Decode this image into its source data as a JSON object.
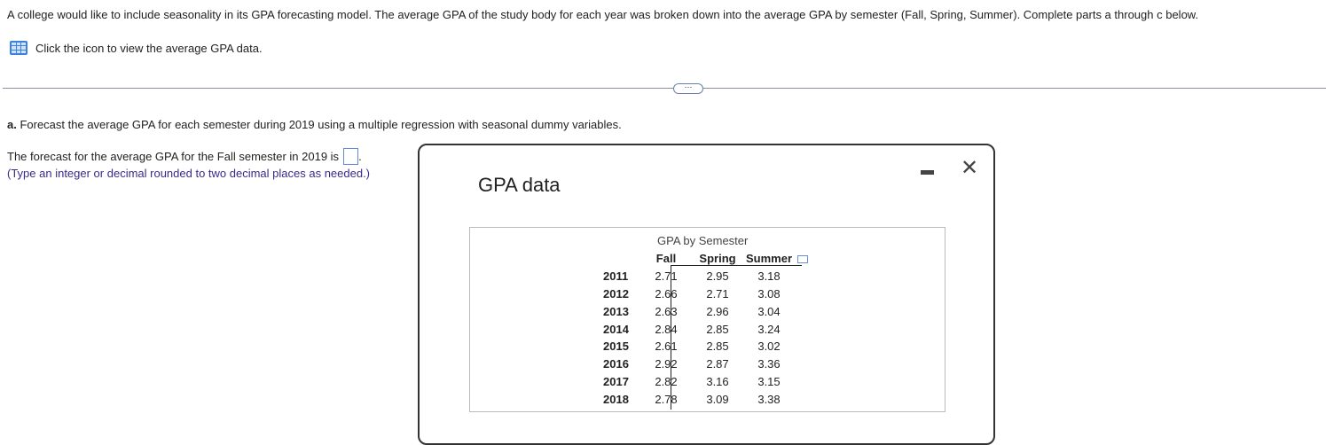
{
  "intro": "A college would like to include seasonality in its GPA forecasting model. The average GPA of the study body for each year was broken down into the average GPA by semester (Fall, Spring, Summer). Complete parts a through c below.",
  "data_link": "Click the icon to view the average GPA data.",
  "expand_dots": "⋯",
  "part_a": {
    "label": "a.",
    "text": " Forecast the average GPA for each semester during 2019 using a multiple regression with seasonal dummy variables.",
    "question": "The forecast for the average GPA for the Fall semester in 2019 is",
    "answer": "",
    "hint": "(Type an integer or decimal rounded to two decimal places as needed.)"
  },
  "modal": {
    "title": "GPA data",
    "minimize": "−",
    "close": "✕",
    "table": {
      "caption": "GPA by Semester",
      "columns": [
        "Fall",
        "Spring",
        "Summer"
      ],
      "rows": [
        {
          "year": "2011",
          "values": [
            "2.71",
            "2.95",
            "3.18"
          ]
        },
        {
          "year": "2012",
          "values": [
            "2.66",
            "2.71",
            "3.08"
          ]
        },
        {
          "year": "2013",
          "values": [
            "2.63",
            "2.96",
            "3.04"
          ]
        },
        {
          "year": "2014",
          "values": [
            "2.84",
            "2.85",
            "3.24"
          ]
        },
        {
          "year": "2015",
          "values": [
            "2.61",
            "2.85",
            "3.02"
          ]
        },
        {
          "year": "2016",
          "values": [
            "2.92",
            "2.87",
            "3.36"
          ]
        },
        {
          "year": "2017",
          "values": [
            "2.82",
            "3.16",
            "3.15"
          ]
        },
        {
          "year": "2018",
          "values": [
            "2.78",
            "3.09",
            "3.38"
          ]
        }
      ]
    }
  }
}
